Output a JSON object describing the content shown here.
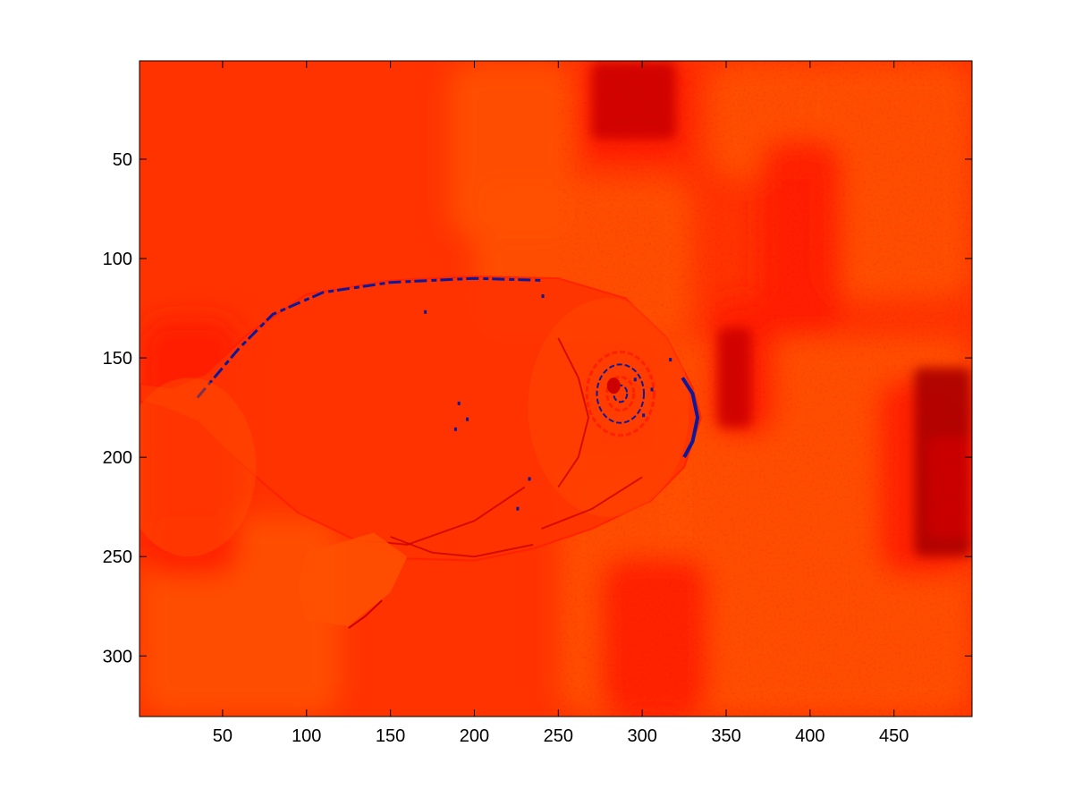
{
  "chart_data": {
    "type": "heatmap",
    "title": "",
    "xlabel": "",
    "ylabel": "",
    "xlim": [
      0.5,
      496.5
    ],
    "ylim": [
      0.5,
      330.5
    ],
    "y_direction": "reversed",
    "grid": false,
    "x_ticks": [
      50,
      100,
      150,
      200,
      250,
      300,
      350,
      400,
      450
    ],
    "x_tick_labels": [
      "50",
      "100",
      "150",
      "200",
      "250",
      "300",
      "350",
      "400",
      "450"
    ],
    "y_ticks": [
      50,
      100,
      150,
      200,
      250,
      300
    ],
    "y_tick_labels": [
      "50",
      "100",
      "150",
      "200",
      "250",
      "300"
    ],
    "colormap_colors": {
      "base_red": "#ff3300",
      "light_orange": "#ff5000",
      "mid_red": "#ff2000",
      "dark_red": "#cc0000",
      "deep_red": "#aa0000",
      "blue_edge": "#0a1a9a"
    },
    "image_content": "goldfish"
  }
}
